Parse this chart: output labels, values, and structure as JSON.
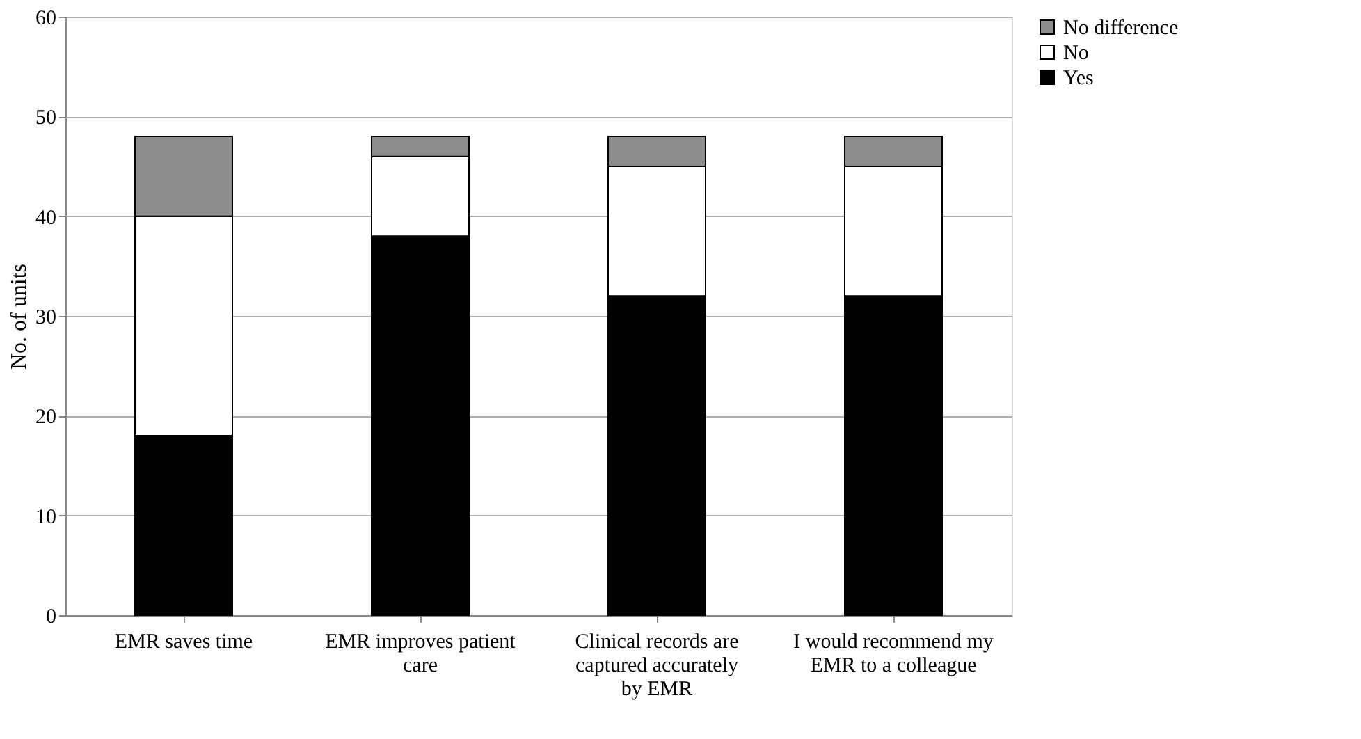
{
  "chart_data": {
    "type": "bar",
    "stacked": true,
    "ylabel": "No. of units",
    "categories": [
      "EMR saves time",
      "EMR improves patient care",
      "Clinical records are captured accurately by EMR",
      "I would recommend my EMR to a colleague"
    ],
    "series": [
      {
        "name": "Yes",
        "color": "#000000",
        "values": [
          18,
          38,
          32,
          32
        ]
      },
      {
        "name": "No",
        "color": "#ffffff",
        "values": [
          22,
          8,
          13,
          13
        ]
      },
      {
        "name": "No difference",
        "color": "#8c8c8c",
        "values": [
          8,
          2,
          3,
          3
        ]
      }
    ],
    "ylim": [
      0,
      60
    ],
    "yticks": [
      0,
      10,
      20,
      30,
      40,
      50,
      60
    ],
    "grid": "y",
    "legend": "right"
  }
}
